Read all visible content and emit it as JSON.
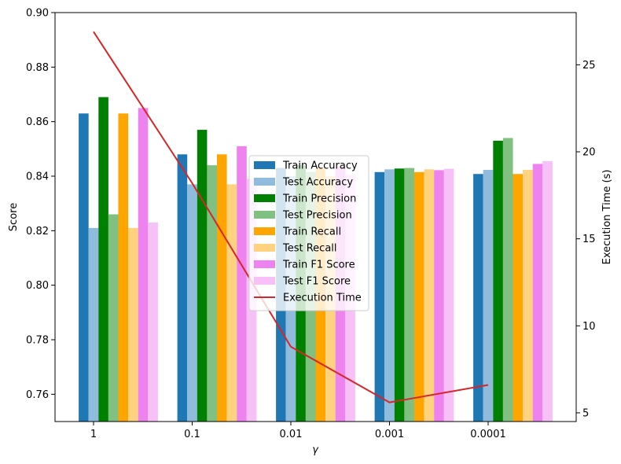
{
  "chart_data": {
    "type": "bar",
    "xlabel": "γ",
    "ylabel": "Score",
    "y2label": "Execution Time (s)",
    "categories": [
      "1",
      "0.1",
      "0.01",
      "0.001",
      "0.0001"
    ],
    "ylim": [
      0.75,
      0.9
    ],
    "yticks": [
      "0.76",
      "0.78",
      "0.80",
      "0.82",
      "0.84",
      "0.86",
      "0.88",
      "0.90"
    ],
    "y2lim": [
      4.5,
      28
    ],
    "y2ticks": [
      "5",
      "10",
      "15",
      "20",
      "25"
    ],
    "legend_position": "center",
    "series": [
      {
        "name": "Train Accuracy",
        "color": "#1f77b4",
        "values": [
          0.863,
          0.848,
          0.843,
          0.8415,
          0.8408
        ]
      },
      {
        "name": "Test Accuracy",
        "color": "#8fbcdc",
        "values": [
          0.821,
          0.837,
          0.84,
          0.8425,
          0.8423
        ]
      },
      {
        "name": "Train Precision",
        "color": "#008000",
        "values": [
          0.869,
          0.857,
          0.844,
          0.8428,
          0.853
        ]
      },
      {
        "name": "Test Precision",
        "color": "#80c080",
        "values": [
          0.826,
          0.844,
          0.8415,
          0.843,
          0.854
        ]
      },
      {
        "name": "Train Recall",
        "color": "#ffa500",
        "values": [
          0.863,
          0.848,
          0.843,
          0.8415,
          0.8408
        ]
      },
      {
        "name": "Test Recall",
        "color": "#ffd280",
        "values": [
          0.821,
          0.837,
          0.84,
          0.8425,
          0.8423
        ]
      },
      {
        "name": "Train F1 Score",
        "color": "#ee82ee",
        "values": [
          0.865,
          0.851,
          0.8435,
          0.8422,
          0.8445
        ]
      },
      {
        "name": "Test F1 Score",
        "color": "#f7c1f7",
        "values": [
          0.823,
          0.839,
          0.8405,
          0.8427,
          0.8455
        ]
      }
    ],
    "line_series": {
      "name": "Execution Time",
      "color": "#d62728",
      "values": [
        26.9,
        18.2,
        8.8,
        5.6,
        6.6
      ]
    }
  }
}
